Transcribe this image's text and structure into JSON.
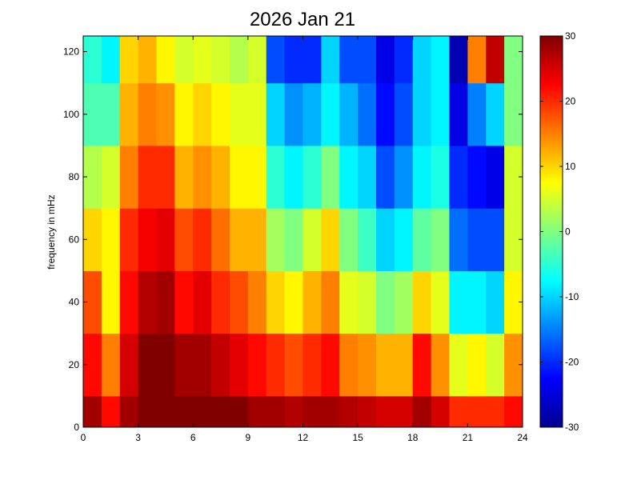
{
  "chart_data": {
    "type": "heatmap",
    "title": "2026 Jan 21",
    "xlabel": "",
    "ylabel": "frequency in mHz",
    "xlim": [
      0,
      24
    ],
    "ylim": [
      0,
      125
    ],
    "x_ticks": [
      "0",
      "3",
      "6",
      "9",
      "12",
      "15",
      "18",
      "21",
      "24"
    ],
    "y_ticks": [
      "0",
      "20",
      "40",
      "60",
      "80",
      "100",
      "120"
    ],
    "colormap": "jet",
    "clim": [
      -30,
      30
    ],
    "colorbar_ticks": [
      "-30",
      "-20",
      "-10",
      "0",
      "10",
      "20",
      "30"
    ],
    "x_bin_edges": [
      0,
      1,
      2,
      3,
      4,
      5,
      6,
      7,
      8,
      9,
      10,
      11,
      12,
      13,
      14,
      15,
      16,
      17,
      18,
      19,
      20,
      21,
      22,
      23,
      24
    ],
    "y_bin_edges": [
      0,
      10,
      30,
      50,
      70,
      90,
      110,
      125
    ],
    "values": [
      [
        28,
        22,
        18,
        10,
        3,
        -3,
        -5
      ],
      [
        22,
        15,
        8,
        8,
        5,
        -3,
        -8
      ],
      [
        28,
        25,
        22,
        20,
        15,
        12,
        10
      ],
      [
        30,
        30,
        27,
        23,
        20,
        15,
        12
      ],
      [
        30,
        30,
        28,
        24,
        20,
        14,
        8
      ],
      [
        30,
        28,
        22,
        18,
        12,
        8,
        5
      ],
      [
        30,
        28,
        24,
        20,
        14,
        10,
        6
      ],
      [
        30,
        26,
        20,
        16,
        12,
        8,
        5
      ],
      [
        30,
        24,
        18,
        12,
        8,
        6,
        3
      ],
      [
        28,
        22,
        15,
        12,
        8,
        6,
        5
      ],
      [
        28,
        20,
        10,
        2,
        -5,
        -10,
        -18
      ],
      [
        27,
        18,
        8,
        0,
        -8,
        -14,
        -20
      ],
      [
        28,
        20,
        12,
        5,
        -5,
        -12,
        -20
      ],
      [
        28,
        22,
        15,
        10,
        0,
        -8,
        -10
      ],
      [
        27,
        15,
        6,
        0,
        -8,
        -12,
        -18
      ],
      [
        26,
        14,
        5,
        -4,
        -10,
        -16,
        -18
      ],
      [
        25,
        12,
        0,
        -10,
        -18,
        -22,
        -24
      ],
      [
        25,
        12,
        2,
        -8,
        -14,
        -18,
        -20
      ],
      [
        28,
        22,
        10,
        -2,
        -8,
        -10,
        -10
      ],
      [
        25,
        14,
        6,
        0,
        -6,
        -8,
        -8
      ],
      [
        20,
        6,
        -8,
        -16,
        -20,
        -24,
        -27
      ],
      [
        20,
        8,
        -8,
        -18,
        -22,
        -15,
        15
      ],
      [
        20,
        5,
        -10,
        -18,
        -24,
        -10,
        26
      ],
      [
        22,
        14,
        8,
        5,
        5,
        0,
        0
      ]
    ]
  }
}
